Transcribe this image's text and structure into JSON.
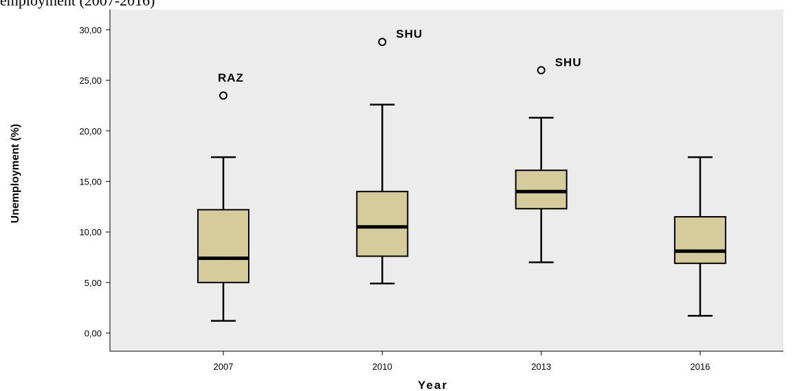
{
  "caption": "employment (2007-2016)",
  "chart_data": {
    "type": "boxplot",
    "xlabel": "Year",
    "ylabel": "Unemployment (%)",
    "ylim": [
      -1.8,
      32
    ],
    "yticks": [
      0,
      5,
      10,
      15,
      20,
      25,
      30
    ],
    "ytick_labels": [
      "0,00",
      "5,00",
      "10,00",
      "15,00",
      "20,00",
      "25,00",
      "30,00"
    ],
    "categories": [
      "2007",
      "2010",
      "2013",
      "2016"
    ],
    "boxes": [
      {
        "category": "2007",
        "min": 1.2,
        "q1": 5.0,
        "median": 7.4,
        "q3": 12.2,
        "max": 17.4,
        "outliers": [
          {
            "value": 23.5,
            "label": "RAZ"
          }
        ]
      },
      {
        "category": "2010",
        "min": 4.9,
        "q1": 7.6,
        "median": 10.5,
        "q3": 14.0,
        "max": 22.6,
        "outliers": [
          {
            "value": 28.8,
            "label": "SHU"
          }
        ]
      },
      {
        "category": "2013",
        "min": 7.0,
        "q1": 12.3,
        "median": 14.0,
        "q3": 16.1,
        "max": 21.3,
        "outliers": [
          {
            "value": 26.0,
            "label": "SHU"
          }
        ]
      },
      {
        "category": "2016",
        "min": 1.7,
        "q1": 6.9,
        "median": 8.1,
        "q3": 11.5,
        "max": 17.4,
        "outliers": []
      }
    ],
    "colors": {
      "box_fill": "#d6cb9b",
      "plot_bg": "#ececec",
      "stroke": "#000000"
    },
    "grid": false,
    "legend": "none"
  }
}
